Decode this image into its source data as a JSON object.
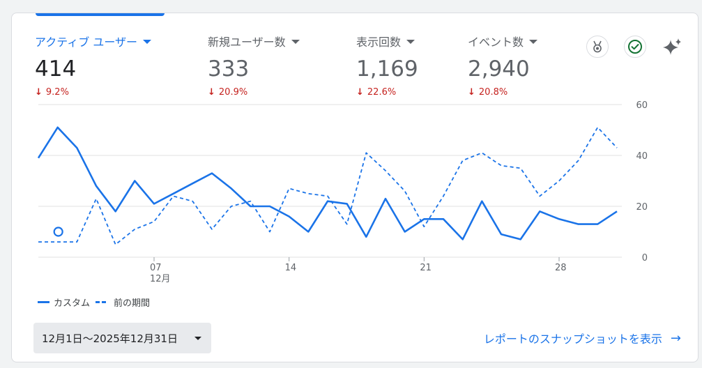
{
  "metrics": [
    {
      "label": "アクティブ ユーザー",
      "value": "414",
      "change": "9.2%",
      "active": true
    },
    {
      "label": "新規ユーザー数",
      "value": "333",
      "change": "20.9%",
      "active": false
    },
    {
      "label": "表示回数",
      "value": "1,169",
      "change": "22.6%",
      "active": false
    },
    {
      "label": "イベント数",
      "value": "2,940",
      "change": "20.8%",
      "active": false
    }
  ],
  "icons": {
    "medal": "medal-icon",
    "check": "check-circle-icon",
    "sparkle": "sparkle-icon"
  },
  "colors": {
    "accent": "#1a73e8",
    "negative": "#c5221f",
    "check_green": "#137333"
  },
  "chart_data": {
    "type": "line",
    "x": [
      "12/1",
      "12/2",
      "12/3",
      "12/4",
      "12/5",
      "12/6",
      "12/7",
      "12/8",
      "12/9",
      "12/10",
      "12/11",
      "12/12",
      "12/13",
      "12/14",
      "12/15",
      "12/16",
      "12/17",
      "12/18",
      "12/19",
      "12/20",
      "12/21",
      "12/22",
      "12/23",
      "12/24",
      "12/25",
      "12/26",
      "12/27",
      "12/28",
      "12/29",
      "12/30",
      "12/31"
    ],
    "x_ticks": [
      {
        "index": 6,
        "label": "07",
        "sublabel": "12月"
      },
      {
        "index": 13,
        "label": "14",
        "sublabel": ""
      },
      {
        "index": 20,
        "label": "21",
        "sublabel": ""
      },
      {
        "index": 27,
        "label": "28",
        "sublabel": ""
      }
    ],
    "y_ticks": [
      "0",
      "20",
      "40",
      "60"
    ],
    "ylim": [
      0,
      60
    ],
    "y_axis_position": "right",
    "grid": true,
    "series": [
      {
        "name": "カスタム",
        "style": "solid",
        "values": [
          39,
          51,
          43,
          28,
          18,
          30,
          21,
          25,
          29,
          33,
          27,
          20,
          20,
          16,
          10,
          22,
          21,
          8,
          23,
          10,
          15,
          15,
          7,
          22,
          9,
          7,
          18,
          15,
          13,
          13,
          18
        ]
      },
      {
        "name": "前の期間",
        "style": "dashed",
        "values": [
          6,
          6,
          6,
          23,
          5,
          11,
          14,
          24,
          22,
          11,
          20,
          22,
          10,
          27,
          25,
          24,
          13,
          41,
          34,
          26,
          12,
          24,
          38,
          41,
          36,
          35,
          24,
          30,
          38,
          51,
          43
        ]
      }
    ],
    "marker": {
      "index": 1,
      "y": 10
    }
  },
  "legend": {
    "solid_label": "カスタム",
    "dashed_label": "前の期間"
  },
  "date_range": {
    "value": "12月1日〜2025年12月31日"
  },
  "snapshot_link": {
    "label": "レポートのスナップショットを表示"
  }
}
